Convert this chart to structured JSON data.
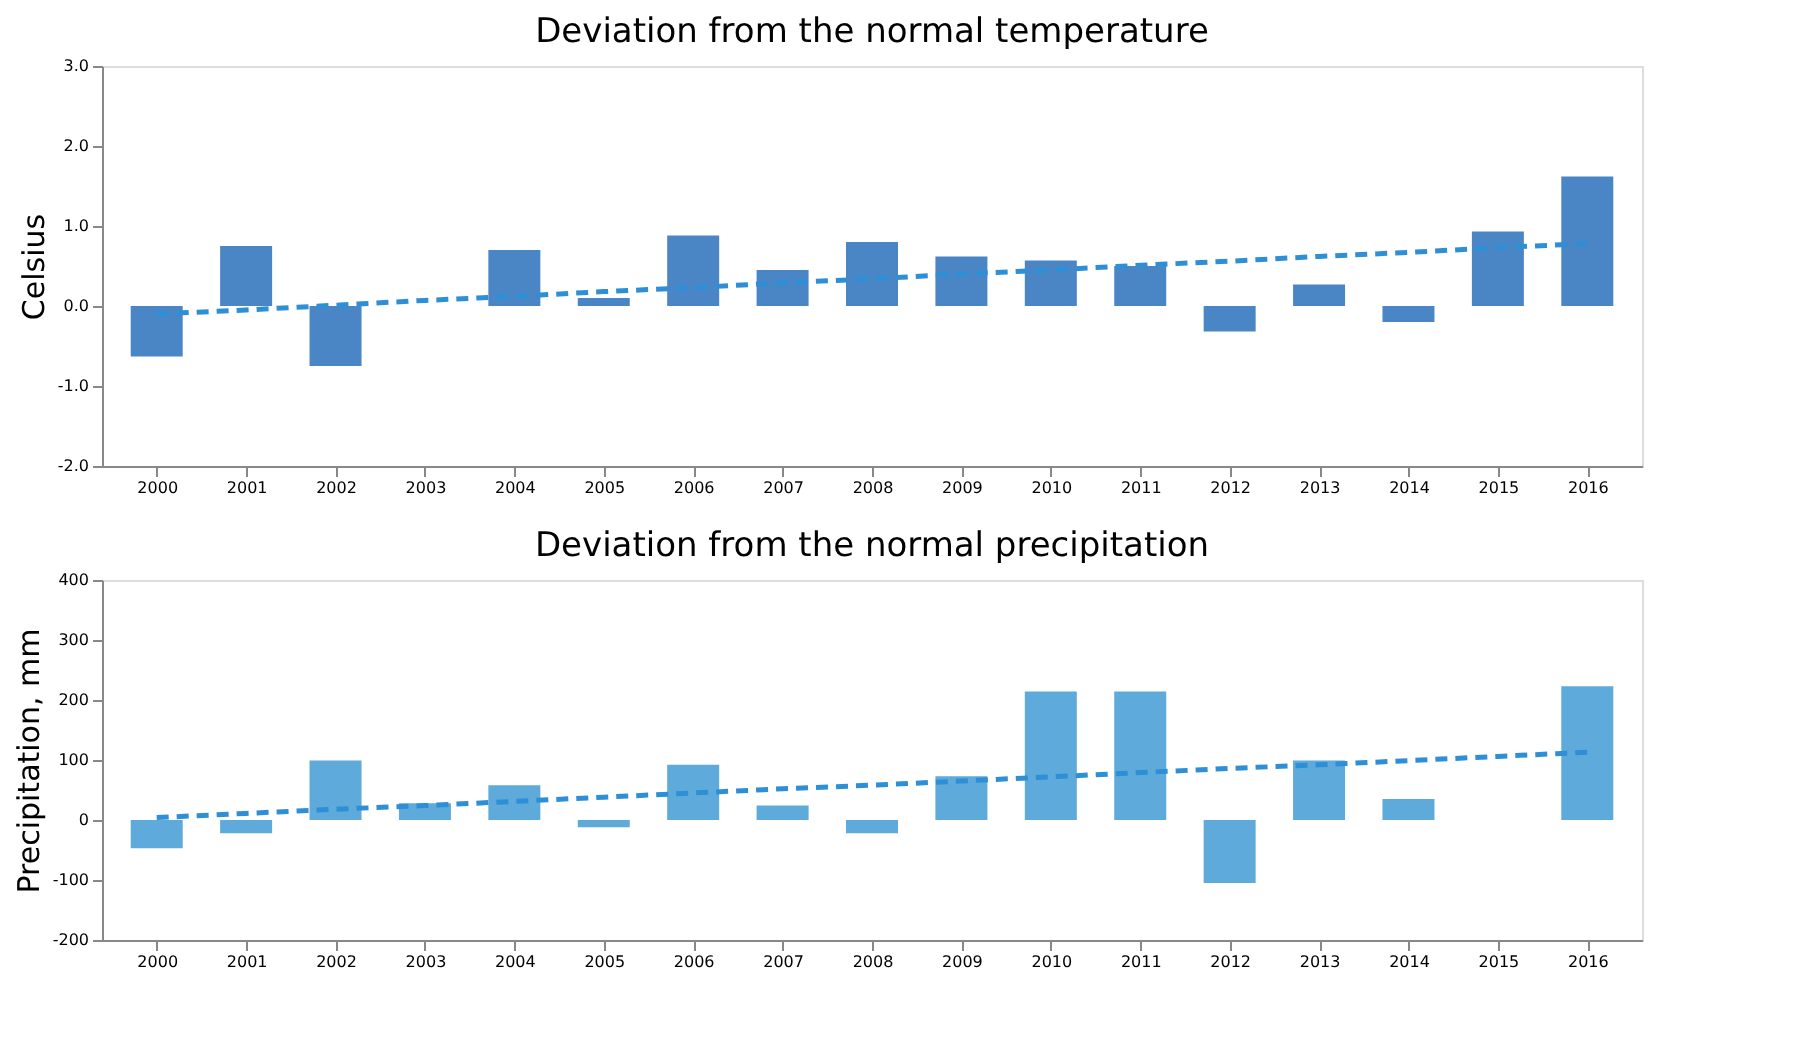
{
  "chart_data": [
    {
      "type": "bar",
      "title": "Deviation from the normal temperature",
      "ylabel": "Celsius",
      "categories": [
        "2000",
        "2001",
        "2002",
        "2003",
        "2004",
        "2005",
        "2006",
        "2007",
        "2008",
        "2009",
        "2010",
        "2011",
        "2012",
        "2013",
        "2014",
        "2015",
        "2016"
      ],
      "series": [
        {
          "color": "#4a86c5",
          "values": [
            -0.63,
            0.75,
            -0.75,
            0.0,
            0.7,
            0.1,
            0.88,
            0.45,
            0.8,
            0.62,
            0.57,
            0.5,
            -0.32,
            0.27,
            -0.2,
            0.93,
            1.62
          ]
        },
        {
          "type": "line",
          "line_style": "dashed",
          "color": "#2e8fd6",
          "values": [
            -0.1,
            -0.05,
            0.01,
            0.07,
            0.12,
            0.18,
            0.23,
            0.29,
            0.34,
            0.4,
            0.45,
            0.51,
            0.56,
            0.62,
            0.67,
            0.73,
            0.78
          ]
        }
      ],
      "ylim": [
        -2.0,
        3.0
      ],
      "yticks": [
        {
          "value": -2,
          "label": "-2.0"
        },
        {
          "value": -1,
          "label": "-1.0"
        },
        {
          "value": 0,
          "label": "0.0"
        },
        {
          "value": 1,
          "label": "1.0"
        },
        {
          "value": 2,
          "label": "2.0"
        },
        {
          "value": 3,
          "label": "3.0"
        }
      ],
      "grid": false
    },
    {
      "type": "bar",
      "title": "Deviation from the normal precipitation",
      "ylabel": "Precipitation, mm",
      "categories": [
        "2000",
        "2001",
        "2002",
        "2003",
        "2004",
        "2005",
        "2006",
        "2007",
        "2008",
        "2009",
        "2010",
        "2011",
        "2012",
        "2013",
        "2014",
        "2015",
        "2016"
      ],
      "series": [
        {
          "color": "#5eaadb",
          "values": [
            -47,
            -22,
            99,
            28,
            58,
            -12,
            92,
            24,
            -22,
            73,
            214,
            214,
            -105,
            99,
            35,
            0,
            223
          ]
        },
        {
          "type": "line",
          "line_style": "dashed",
          "color": "#2e8fd6",
          "values": [
            4,
            11,
            18,
            24,
            31,
            38,
            45,
            52,
            58,
            65,
            72,
            79,
            86,
            92,
            99,
            106,
            113
          ]
        }
      ],
      "ylim": [
        -200,
        400
      ],
      "yticks": [
        -200,
        -100,
        0,
        100,
        200,
        300,
        400
      ],
      "grid": false
    }
  ]
}
